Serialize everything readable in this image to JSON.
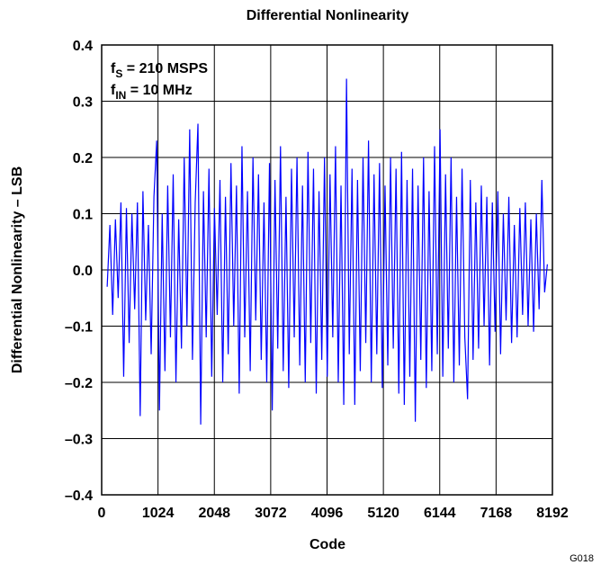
{
  "chart_data": {
    "type": "line",
    "title": "Differential Nonlinearity",
    "xlabel": "Code",
    "ylabel": "Differential Nonlinearity – LSB",
    "figure_id": "G018",
    "annotations": [
      {
        "main": "f",
        "sub": "S",
        "tail": " = 210 MSPS"
      },
      {
        "main": "f",
        "sub": "IN",
        "tail": " = 10 MHz"
      }
    ],
    "xlim": [
      0,
      8192
    ],
    "xticks": [
      0,
      1024,
      2048,
      3072,
      4096,
      5120,
      6144,
      7168,
      8192
    ],
    "ylim": [
      -0.4,
      0.4
    ],
    "yticks": [
      {
        "value": -0.4,
        "label": "–0.4"
      },
      {
        "value": -0.3,
        "label": "–0.3"
      },
      {
        "value": -0.2,
        "label": "–0.2"
      },
      {
        "value": -0.1,
        "label": "–0.1"
      },
      {
        "value": 0,
        "label": "0.0"
      },
      0.1,
      0.2,
      0.3,
      0.4
    ],
    "grid": true,
    "color": "#0000ff",
    "x": [
      100,
      150,
      200,
      250,
      300,
      350,
      400,
      450,
      500,
      550,
      600,
      650,
      700,
      750,
      800,
      850,
      900,
      950,
      1000,
      1050,
      1100,
      1150,
      1200,
      1250,
      1300,
      1350,
      1400,
      1450,
      1500,
      1550,
      1600,
      1650,
      1700,
      1750,
      1800,
      1850,
      1900,
      1950,
      2000,
      2050,
      2100,
      2150,
      2200,
      2250,
      2300,
      2350,
      2400,
      2450,
      2500,
      2550,
      2600,
      2650,
      2700,
      2750,
      2800,
      2850,
      2900,
      2950,
      3000,
      3050,
      3100,
      3150,
      3200,
      3250,
      3300,
      3350,
      3400,
      3450,
      3500,
      3550,
      3600,
      3650,
      3700,
      3750,
      3800,
      3850,
      3900,
      3950,
      4000,
      4050,
      4100,
      4150,
      4200,
      4250,
      4300,
      4350,
      4400,
      4450,
      4500,
      4550,
      4600,
      4650,
      4700,
      4750,
      4800,
      4850,
      4900,
      4950,
      5000,
      5050,
      5100,
      5150,
      5200,
      5250,
      5300,
      5350,
      5400,
      5450,
      5500,
      5550,
      5600,
      5650,
      5700,
      5750,
      5800,
      5850,
      5900,
      5950,
      6000,
      6050,
      6100,
      6150,
      6200,
      6250,
      6300,
      6350,
      6400,
      6450,
      6500,
      6550,
      6600,
      6650,
      6700,
      6750,
      6800,
      6850,
      6900,
      6950,
      7000,
      7050,
      7100,
      7150,
      7200,
      7250,
      7300,
      7350,
      7400,
      7450,
      7500,
      7550,
      7600,
      7650,
      7700,
      7750,
      7800,
      7850,
      7900,
      7950,
      8000,
      8050,
      8100
    ],
    "values": [
      -0.03,
      0.08,
      -0.08,
      0.09,
      -0.05,
      0.12,
      -0.19,
      0.11,
      -0.13,
      0.1,
      -0.07,
      0.12,
      -0.26,
      0.14,
      -0.09,
      0.08,
      -0.15,
      0.13,
      0.23,
      -0.25,
      0.1,
      -0.18,
      0.15,
      -0.12,
      0.17,
      -0.2,
      0.09,
      -0.14,
      0.2,
      -0.1,
      0.25,
      -0.16,
      0.12,
      0.26,
      -0.275,
      0.14,
      -0.12,
      0.18,
      -0.19,
      0.11,
      -0.08,
      0.16,
      -0.2,
      0.13,
      -0.15,
      0.19,
      -0.1,
      0.15,
      -0.22,
      0.22,
      -0.12,
      0.14,
      -0.18,
      0.2,
      -0.09,
      0.17,
      -0.16,
      0.12,
      -0.2,
      0.19,
      -0.25,
      0.16,
      -0.14,
      0.22,
      -0.18,
      0.13,
      -0.21,
      0.18,
      -0.12,
      0.2,
      -0.17,
      0.15,
      -0.2,
      0.21,
      -0.13,
      0.18,
      -0.22,
      0.14,
      -0.16,
      0.2,
      -0.19,
      0.17,
      -0.12,
      0.22,
      -0.2,
      0.15,
      -0.24,
      0.34,
      -0.15,
      0.18,
      -0.24,
      0.16,
      -0.18,
      0.2,
      -0.13,
      0.23,
      -0.2,
      0.17,
      -0.15,
      0.19,
      -0.21,
      0.15,
      -0.17,
      0.2,
      -0.14,
      0.18,
      -0.22,
      0.21,
      -0.24,
      0.16,
      -0.19,
      0.18,
      -0.27,
      0.15,
      -0.16,
      0.2,
      -0.21,
      0.14,
      -0.18,
      0.22,
      -0.15,
      0.25,
      -0.19,
      0.17,
      -0.14,
      0.2,
      -0.2,
      0.13,
      -0.17,
      0.18,
      -0.12,
      -0.23,
      0.16,
      -0.16,
      0.12,
      -0.14,
      0.15,
      -0.1,
      0.13,
      -0.17,
      0.12,
      -0.11,
      0.14,
      -0.15,
      0.1,
      -0.09,
      0.13,
      -0.13,
      0.08,
      -0.12,
      0.11,
      -0.08,
      0.12,
      -0.1,
      0.09,
      -0.11,
      0.1,
      -0.07,
      0.16,
      -0.04,
      0.01
    ]
  }
}
